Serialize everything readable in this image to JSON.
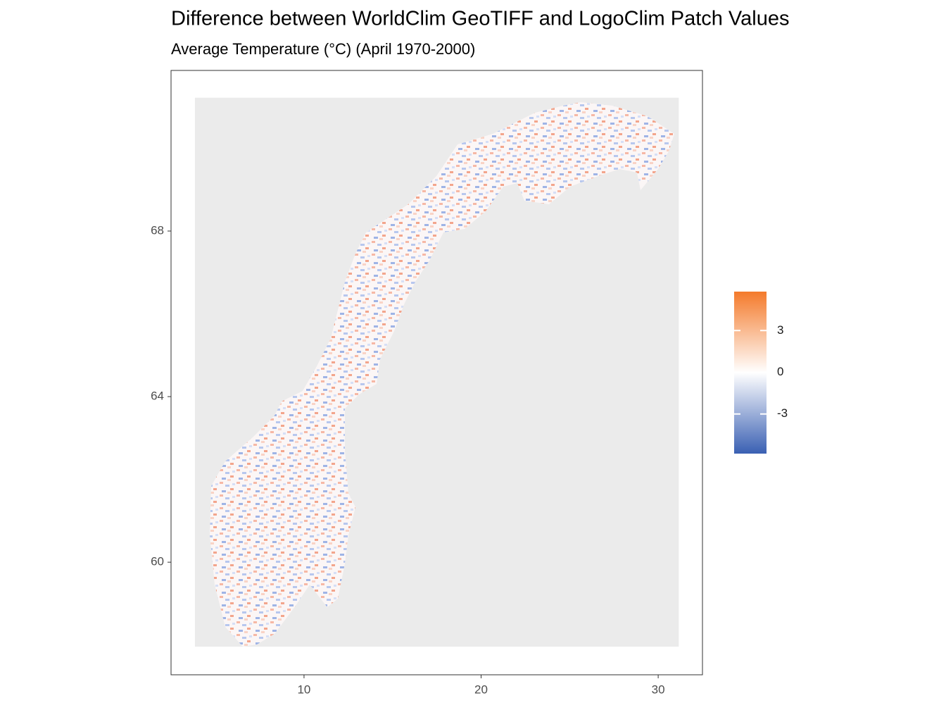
{
  "chart_data": {
    "type": "raster",
    "title": "Difference between WorldClim GeoTIFF and LogoClim Patch Values",
    "subtitle": "Average Temperature (°C) (April 1970-2000)",
    "xlim": [
      2.49,
      32.5
    ],
    "ylim": [
      57.28,
      71.88
    ],
    "xticks": [
      10,
      20,
      30
    ],
    "yticks": [
      60,
      64,
      68
    ],
    "raster_extent": {
      "x": [
        3.84,
        31.16
      ],
      "y": [
        57.96,
        71.22
      ]
    },
    "background_color": "#ebebeb",
    "colorbar": {
      "limits": [
        -5.85,
        5.8
      ],
      "ticks": [
        -3,
        0,
        3
      ],
      "colors": {
        "low": "#3a60b3",
        "mid": "#ffffff",
        "high": "#f47a2b"
      }
    }
  }
}
